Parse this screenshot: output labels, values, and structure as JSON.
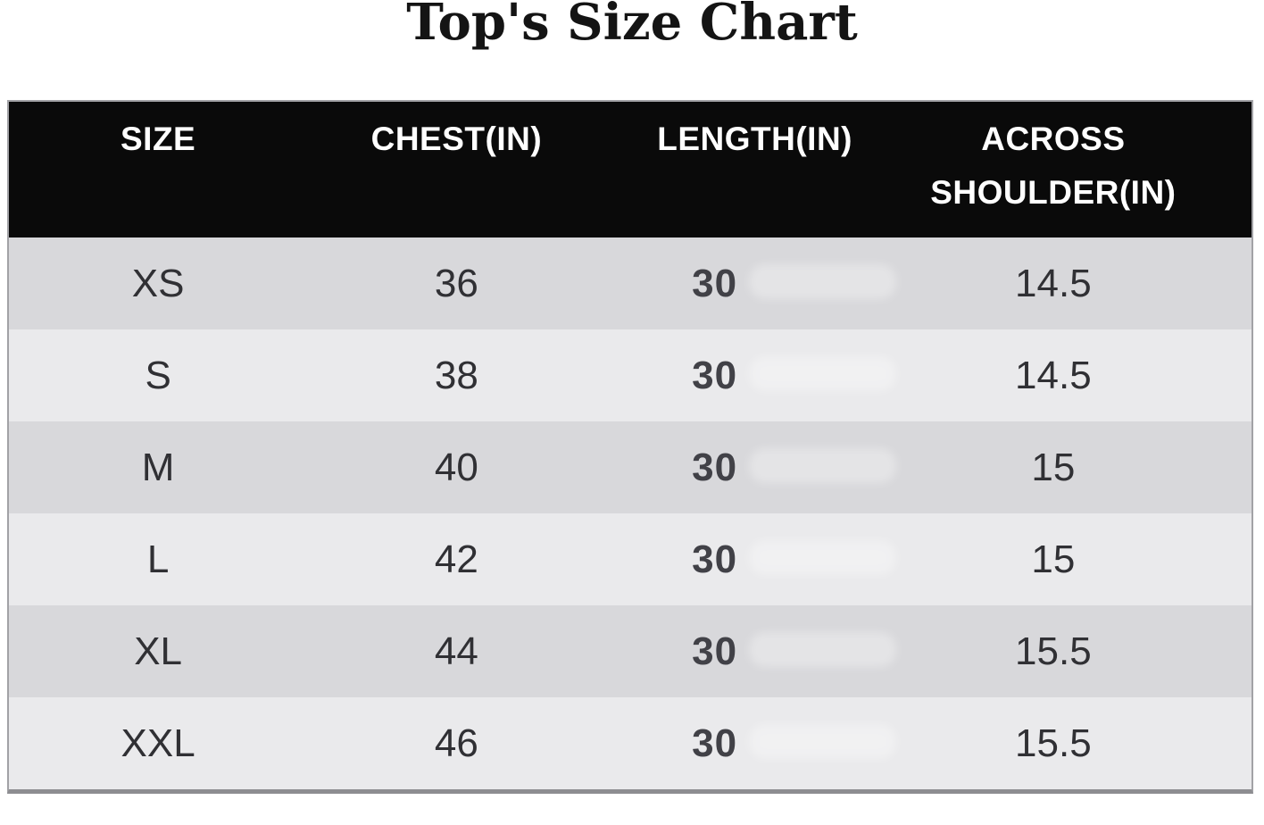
{
  "page": {
    "title": "Top's Size Chart"
  },
  "chart_data": {
    "type": "table",
    "title": "Top's Size Chart",
    "columns": [
      "SIZE",
      "CHEST(IN)",
      "LENGTH(IN)",
      "ACROSS SHOULDER(IN)"
    ],
    "rows": [
      [
        "XS",
        "36",
        "30",
        "14.5"
      ],
      [
        "S",
        "38",
        "30",
        "14.5"
      ],
      [
        "M",
        "40",
        "30",
        "15"
      ],
      [
        "L",
        "42",
        "30",
        "15"
      ],
      [
        "XL",
        "44",
        "30",
        "15.5"
      ],
      [
        "XXL",
        "46",
        "30",
        "15.5"
      ]
    ]
  },
  "colors": {
    "header_bg": "#0a0a0a",
    "header_text": "#ffffff",
    "row_dark": "#d8d8db",
    "row_light": "#eaeaec",
    "data_text": "#303034",
    "length_text": "#414147",
    "border": "#a2a2a6",
    "title_text": "#141414"
  }
}
